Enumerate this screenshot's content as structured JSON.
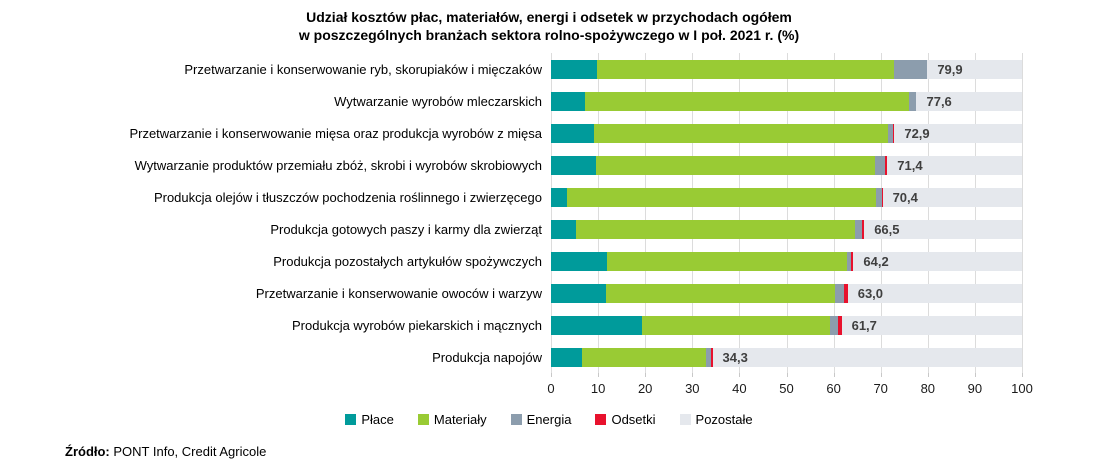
{
  "title": {
    "line1": "Udział kosztów płac, materiałów, energi i odsetek w przychodach ogółem",
    "line2": "w poszczególnych branżach sektora rolno-spożywczego w I poł. 2021 r. (%)"
  },
  "chart_data": {
    "type": "bar",
    "orientation": "horizontal",
    "stacked": true,
    "title": "Udział kosztów płac, materiałów, energi i odsetek w przychodach ogółem w poszczególnych branżach sektora rolno-spożywczego w I poł. 2021 r. (%)",
    "xlim": [
      0,
      100
    ],
    "x_ticks": [
      "0",
      "10",
      "20",
      "30",
      "40",
      "50",
      "60",
      "70",
      "80",
      "90",
      "100"
    ],
    "grid": true,
    "legend_position": "bottom",
    "series": [
      {
        "name": "Płace",
        "key": "place",
        "color": "#009b9b"
      },
      {
        "name": "Materiały",
        "key": "materialy",
        "color": "#99cb34"
      },
      {
        "name": "Energia",
        "key": "energia",
        "color": "#8c9dad"
      },
      {
        "name": "Odsetki",
        "key": "odsetki",
        "color": "#e8112d"
      },
      {
        "name": "Pozostałe",
        "key": "pozostale",
        "color": "#e5e8ed"
      }
    ],
    "rows": [
      {
        "category": "Przetwarzanie i konserwowanie ryb, skorupiaków i mięczaków",
        "place": 9.7,
        "materialy": 63.2,
        "energia": 6.9,
        "odsetki": 0.1,
        "pozostale": 20.1,
        "total": 79.9,
        "total_label": "79,9"
      },
      {
        "category": "Wytwarzanie wyrobów mleczarskich",
        "place": 7.2,
        "materialy": 68.9,
        "energia": 1.4,
        "odsetki": 0.1,
        "pozostale": 22.4,
        "total": 77.6,
        "total_label": "77,6"
      },
      {
        "category": "Przetwarzanie i konserwowanie mięsa oraz produkcja wyrobów z mięsa",
        "place": 9.2,
        "materialy": 62.4,
        "energia": 1.0,
        "odsetki": 0.3,
        "pozostale": 27.1,
        "total": 72.9,
        "total_label": "72,9"
      },
      {
        "category": "Wytwarzanie produktów przemiału zbóż, skrobi i wyrobów skrobiowych",
        "place": 9.5,
        "materialy": 59.3,
        "energia": 2.2,
        "odsetki": 0.4,
        "pozostale": 28.6,
        "total": 71.4,
        "total_label": "71,4"
      },
      {
        "category": "Produkcja olejów i tłuszczów pochodzenia roślinnego i zwierzęcego",
        "place": 3.3,
        "materialy": 65.8,
        "energia": 1.2,
        "odsetki": 0.1,
        "pozostale": 29.6,
        "total": 70.4,
        "total_label": "70,4"
      },
      {
        "category": "Produkcja gotowych paszy i karmy dla zwierząt",
        "place": 5.3,
        "materialy": 59.2,
        "energia": 1.6,
        "odsetki": 0.4,
        "pozostale": 33.5,
        "total": 66.5,
        "total_label": "66,5"
      },
      {
        "category": "Produkcja pozostałych artykułów spożywczych",
        "place": 11.8,
        "materialy": 51.0,
        "energia": 1.0,
        "odsetki": 0.4,
        "pozostale": 35.8,
        "total": 64.2,
        "total_label": "64,2"
      },
      {
        "category": "Przetwarzanie i konserwowanie owoców i warzyw",
        "place": 11.6,
        "materialy": 48.8,
        "energia": 1.9,
        "odsetki": 0.7,
        "pozostale": 37.0,
        "total": 63.0,
        "total_label": "63,0"
      },
      {
        "category": "Produkcja wyrobów piekarskich i mącznych",
        "place": 19.3,
        "materialy": 39.9,
        "energia": 1.7,
        "odsetki": 0.8,
        "pozostale": 38.3,
        "total": 61.7,
        "total_label": "61,7"
      },
      {
        "category": "Produkcja napojów",
        "place": 6.5,
        "materialy": 26.4,
        "energia": 1.0,
        "odsetki": 0.4,
        "pozostale": 65.7,
        "total": 34.3,
        "total_label": "34,3"
      }
    ]
  },
  "source": {
    "label": "Źródło:",
    "text": " PONT Info, Credit Agricole"
  },
  "colors": {
    "gridline": "#dcdcdc",
    "value_label": "#3f3f3f",
    "title": "#000000"
  }
}
